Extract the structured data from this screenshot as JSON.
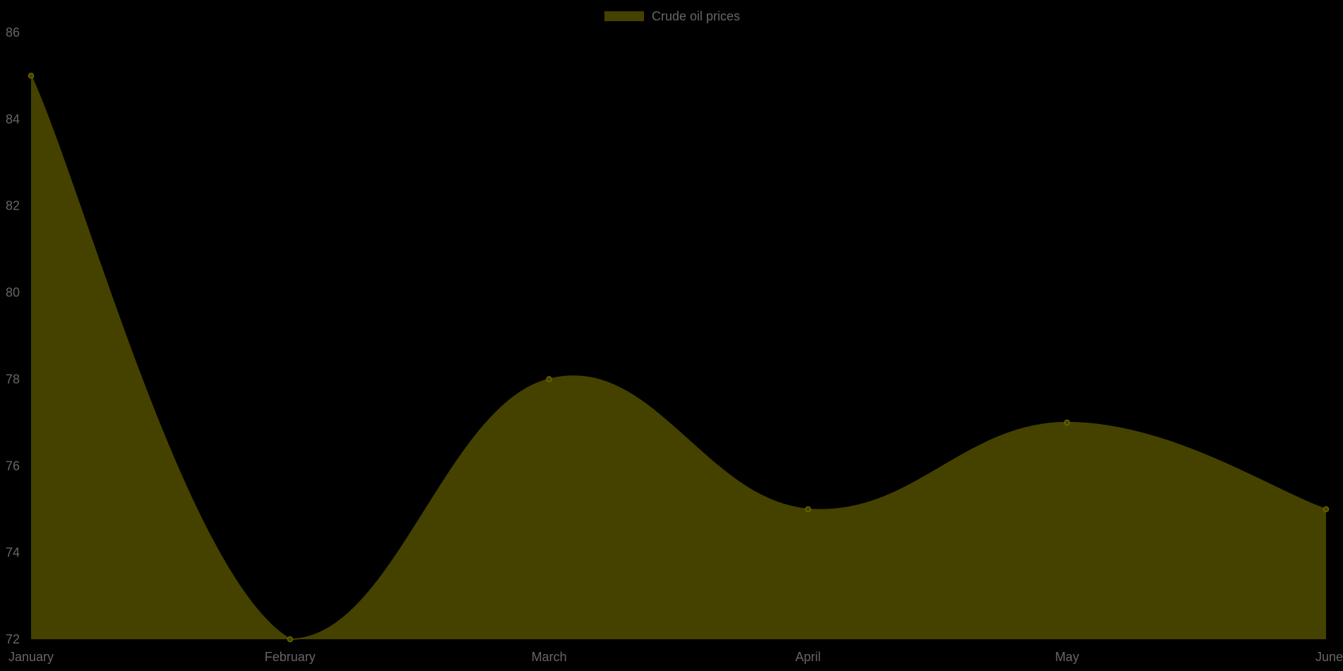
{
  "chart_data": {
    "type": "area",
    "categories": [
      "January",
      "February",
      "March",
      "April",
      "May",
      "June"
    ],
    "series": [
      {
        "name": "Crude oil prices",
        "values": [
          85,
          72,
          78,
          75,
          77,
          75
        ]
      }
    ],
    "ylim": [
      72,
      86
    ],
    "yticks": [
      72,
      74,
      76,
      78,
      80,
      82,
      84,
      86
    ],
    "grid": false,
    "legend_position": "top-center",
    "colors": {
      "fill": "#454200",
      "line": "#454200",
      "point": "#454200",
      "point_stroke": "#6b6800",
      "text": "#666666",
      "background": "#000000"
    }
  }
}
